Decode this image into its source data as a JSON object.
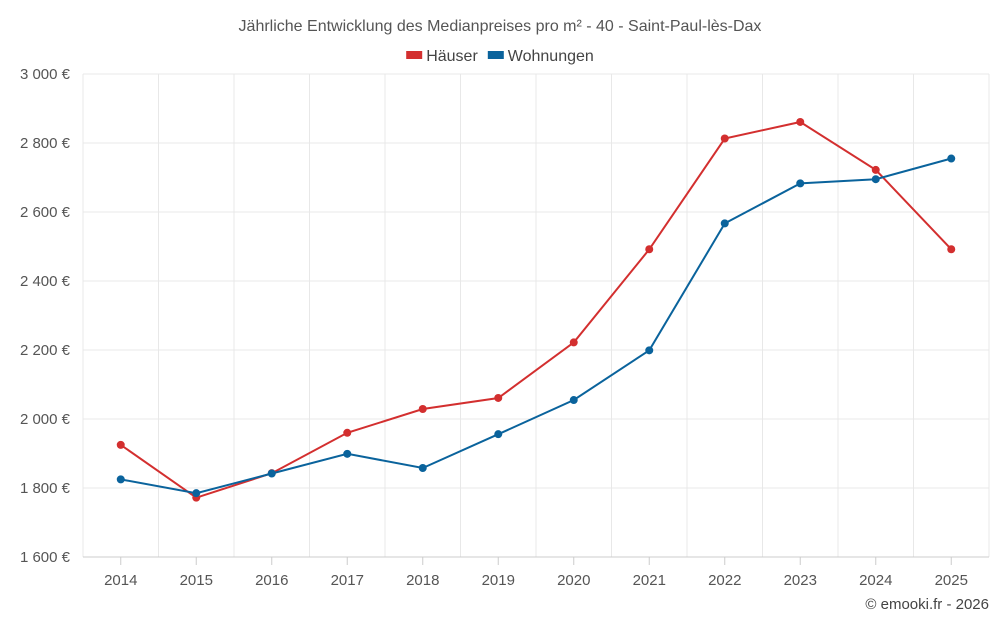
{
  "chart_data": {
    "type": "line",
    "title": "Jährliche Entwicklung des Medianpreises pro m² - 40 - Saint-Paul-lès-Dax",
    "categories": [
      "2014",
      "2015",
      "2016",
      "2017",
      "2018",
      "2019",
      "2020",
      "2021",
      "2022",
      "2023",
      "2024",
      "2025"
    ],
    "ylim": [
      1600,
      3000
    ],
    "yticks": [
      1600,
      1800,
      2000,
      2200,
      2400,
      2600,
      2800,
      3000
    ],
    "ytick_labels": [
      "1 600 €",
      "1 800 €",
      "2 000 €",
      "2 200 €",
      "2 400 €",
      "2 600 €",
      "2 800 €",
      "3 000 €"
    ],
    "legend_position": "top-center",
    "grid": true,
    "series": [
      {
        "name": "Häuser",
        "color": "#d32f2f",
        "values": [
          1925,
          1772,
          1843,
          1960,
          2029,
          2061,
          2222,
          2492,
          2813,
          2861,
          2722,
          2492
        ]
      },
      {
        "name": "Wohnungen",
        "color": "#0a639c",
        "values": [
          1825,
          1785,
          1842,
          1899,
          1858,
          1956,
          2055,
          2199,
          2567,
          2683,
          2695,
          2755
        ]
      }
    ]
  },
  "credit": "© emooki.fr - 2026"
}
